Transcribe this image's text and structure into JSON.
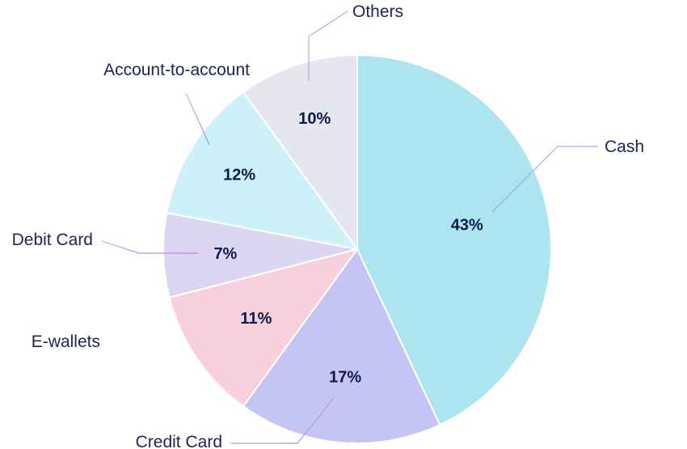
{
  "chart_data": {
    "type": "pie",
    "title": "",
    "slices": [
      {
        "label": "Cash",
        "value": 43,
        "display": "43%",
        "color": "#ace4f0"
      },
      {
        "label": "Credit Card",
        "value": 17,
        "display": "17%",
        "color": "#c5c5f5"
      },
      {
        "label": "E-wallets",
        "value": 11,
        "display": "11%",
        "color": "#f8d0dc"
      },
      {
        "label": "Debit Card",
        "value": 7,
        "display": "7%",
        "color": "#ddd6f3"
      },
      {
        "label": "Account-to-account",
        "value": 12,
        "display": "12%",
        "color": "#ccf1f9"
      },
      {
        "label": "Others",
        "value": 10,
        "display": "10%",
        "color": "#e6e6ee"
      }
    ],
    "leader_colors": [
      "#9fc6ee",
      "#c07fd8"
    ]
  }
}
